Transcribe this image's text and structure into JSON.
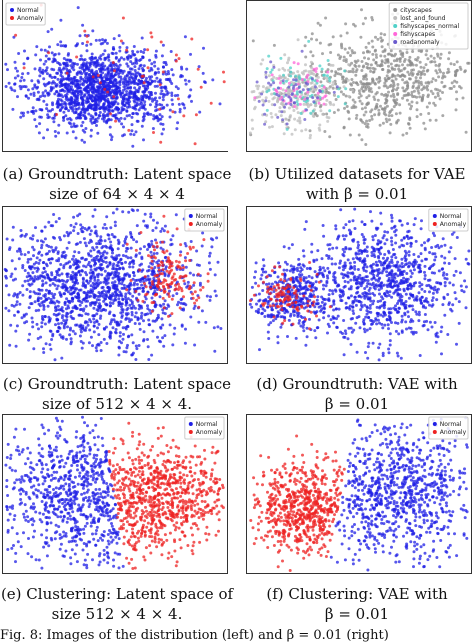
{
  "panels": [
    {
      "id": "a",
      "caption_parts": [
        "(a) Groundtruth: Latent space",
        "size of 64 × 4 × 4"
      ],
      "legend": [
        {
          "label": "Normal",
          "color": "#1f1fe6"
        },
        {
          "label": "Anomaly",
          "color": "#ee2222"
        }
      ],
      "legend_position": "top-left"
    },
    {
      "id": "b",
      "caption_parts": [
        "(b) Utilized datasets for VAE",
        "with β = 0.01"
      ],
      "legend": [
        {
          "label": "cityscapes",
          "color": "#8c8c8c"
        },
        {
          "label": "lost_and_found",
          "color": "#bdbdbd"
        },
        {
          "label": "fishyscapes_normal",
          "color": "#4fd0c8"
        },
        {
          "label": "fishyscapes",
          "color": "#ff66d9"
        },
        {
          "label": "roadanomaly",
          "color": "#6a5acd"
        }
      ],
      "legend_position": "top-right"
    },
    {
      "id": "c",
      "caption_parts": [
        "(c) Groundtruth: Latent space",
        "size of 512 × 4 × 4."
      ],
      "legend": [
        {
          "label": "Normal",
          "color": "#1f1fe6"
        },
        {
          "label": "Anomaly",
          "color": "#ee2222"
        }
      ],
      "legend_position": "top-right"
    },
    {
      "id": "d",
      "caption_parts": [
        "(d) Groundtruth: VAE with",
        "β = 0.01"
      ],
      "legend": [
        {
          "label": "Normal",
          "color": "#1f1fe6"
        },
        {
          "label": "Anomaly",
          "color": "#ee2222"
        }
      ],
      "legend_position": "top-right"
    },
    {
      "id": "e",
      "caption_parts": [
        "(e) Clustering: Latent space of",
        "size 512 × 4 × 4."
      ],
      "legend": [
        {
          "label": "Normal",
          "color": "#1f1fe6"
        },
        {
          "label": "Anomaly",
          "color": "#ee2222"
        }
      ],
      "legend_position": "top-right"
    },
    {
      "id": "f",
      "caption_parts": [
        "(f) Clustering: VAE with",
        "β = 0.01"
      ],
      "legend": [
        {
          "label": "Normal",
          "color": "#1f1fe6"
        },
        {
          "label": "Anomaly",
          "color": "#ee2222"
        }
      ],
      "legend_position": "top-right"
    }
  ],
  "figure_caption": "Fig. 8: Images of the distribution (left) and β = 0.01 (right)",
  "chart_data": [
    {
      "type": "scatter",
      "panel": "a",
      "series": [
        {
          "name": "Normal"
        },
        {
          "name": "Anomaly"
        }
      ],
      "xlabel": "",
      "ylabel": "",
      "grid": false
    },
    {
      "type": "scatter",
      "panel": "b",
      "series": [
        {
          "name": "cityscapes"
        },
        {
          "name": "lost_and_found"
        },
        {
          "name": "fishyscapes_normal"
        },
        {
          "name": "fishyscapes"
        },
        {
          "name": "roadanomaly"
        }
      ],
      "xlabel": "",
      "ylabel": "",
      "grid": false
    },
    {
      "type": "scatter",
      "panel": "c",
      "series": [
        {
          "name": "Normal"
        },
        {
          "name": "Anomaly"
        }
      ],
      "xlabel": "",
      "ylabel": "",
      "grid": false
    },
    {
      "type": "scatter",
      "panel": "d",
      "series": [
        {
          "name": "Normal"
        },
        {
          "name": "Anomaly"
        }
      ],
      "xlabel": "",
      "ylabel": "",
      "grid": false
    },
    {
      "type": "scatter",
      "panel": "e",
      "series": [
        {
          "name": "Normal"
        },
        {
          "name": "Anomaly"
        }
      ],
      "xlabel": "",
      "ylabel": "",
      "grid": false
    },
    {
      "type": "scatter",
      "panel": "f",
      "series": [
        {
          "name": "Normal"
        },
        {
          "name": "Anomaly"
        }
      ],
      "xlabel": "",
      "ylabel": "",
      "grid": false
    }
  ]
}
